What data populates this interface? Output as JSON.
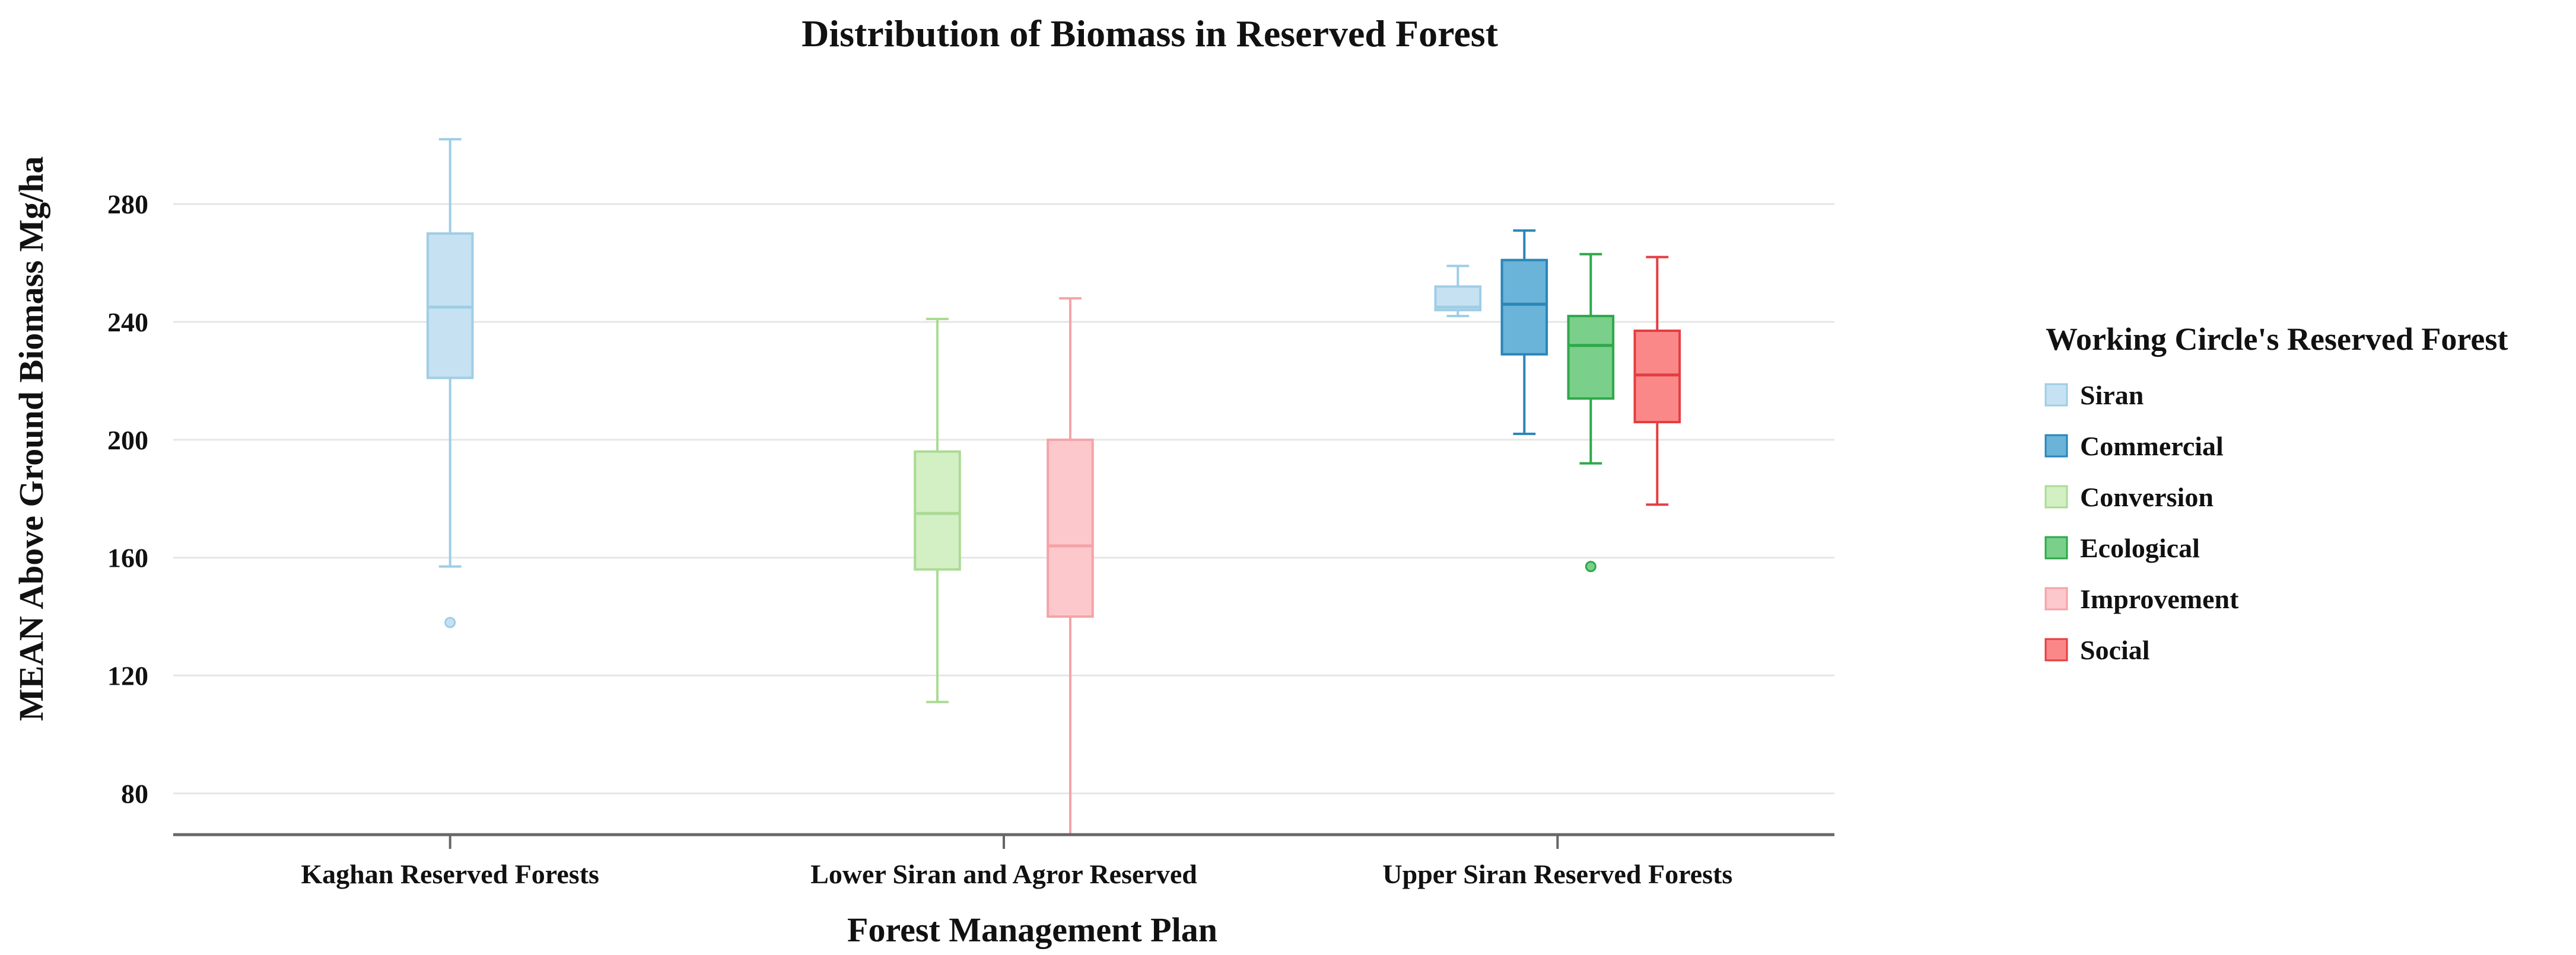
{
  "chart_data": {
    "type": "boxplot",
    "title": "Distribution of Biomass in Reserved Forest",
    "xlabel": "Forest Management Plan",
    "ylabel": "MEAN Above Ground Biomass Mg/ha",
    "ylim": [
      66,
      308
    ],
    "yticks": [
      80,
      120,
      160,
      200,
      240,
      280
    ],
    "grid": true,
    "legend_position": "right",
    "categories": [
      "Kaghan Reserved Forests",
      "Lower Siran and Agror Reserved",
      "Upper Siran Reserved Forests"
    ],
    "legend": {
      "title": "Working Circle's Reserved Forest",
      "items": [
        {
          "name": "Siran",
          "fill": "#c6e2f2",
          "stroke": "#9fcde6"
        },
        {
          "name": "Commercial",
          "fill": "#6ab3d9",
          "stroke": "#2a86b8"
        },
        {
          "name": "Conversion",
          "fill": "#d3efc4",
          "stroke": "#aadb94"
        },
        {
          "name": "Ecological",
          "fill": "#7acf8a",
          "stroke": "#2ea84a"
        },
        {
          "name": "Improvement",
          "fill": "#fcc8cb",
          "stroke": "#f5a3a8"
        },
        {
          "name": "Social",
          "fill": "#fb8888",
          "stroke": "#e43e42"
        }
      ]
    },
    "boxes": [
      {
        "category": 0,
        "series": "Siran",
        "offset": 0,
        "width": 0.27,
        "min": 157,
        "q1": 221,
        "median": 245,
        "q3": 270,
        "max": 302,
        "outliers": [
          138
        ]
      },
      {
        "category": 1,
        "series": "Conversion",
        "offset": -0.4,
        "width": 0.27,
        "min": 111,
        "q1": 156,
        "median": 175,
        "q3": 196,
        "max": 241,
        "outliers": []
      },
      {
        "category": 1,
        "series": "Improvement",
        "offset": 0.4,
        "width": 0.27,
        "min": 66,
        "q1": 140,
        "median": 164,
        "q3": 200,
        "max": 248,
        "outliers": []
      },
      {
        "category": 2,
        "series": "Siran",
        "offset": -0.6,
        "width": 0.27,
        "min": 242,
        "q1": 244,
        "median": 245,
        "q3": 252,
        "max": 259,
        "outliers": []
      },
      {
        "category": 2,
        "series": "Commercial",
        "offset": -0.2,
        "width": 0.27,
        "min": 202,
        "q1": 229,
        "median": 246,
        "q3": 261,
        "max": 271,
        "outliers": []
      },
      {
        "category": 2,
        "series": "Ecological",
        "offset": 0.2,
        "width": 0.27,
        "min": 192,
        "q1": 214,
        "median": 232,
        "q3": 242,
        "max": 263,
        "outliers": [
          157
        ]
      },
      {
        "category": 2,
        "series": "Social",
        "offset": 0.6,
        "width": 0.27,
        "min": 178,
        "q1": 206,
        "median": 222,
        "q3": 237,
        "max": 262,
        "outliers": []
      }
    ]
  }
}
